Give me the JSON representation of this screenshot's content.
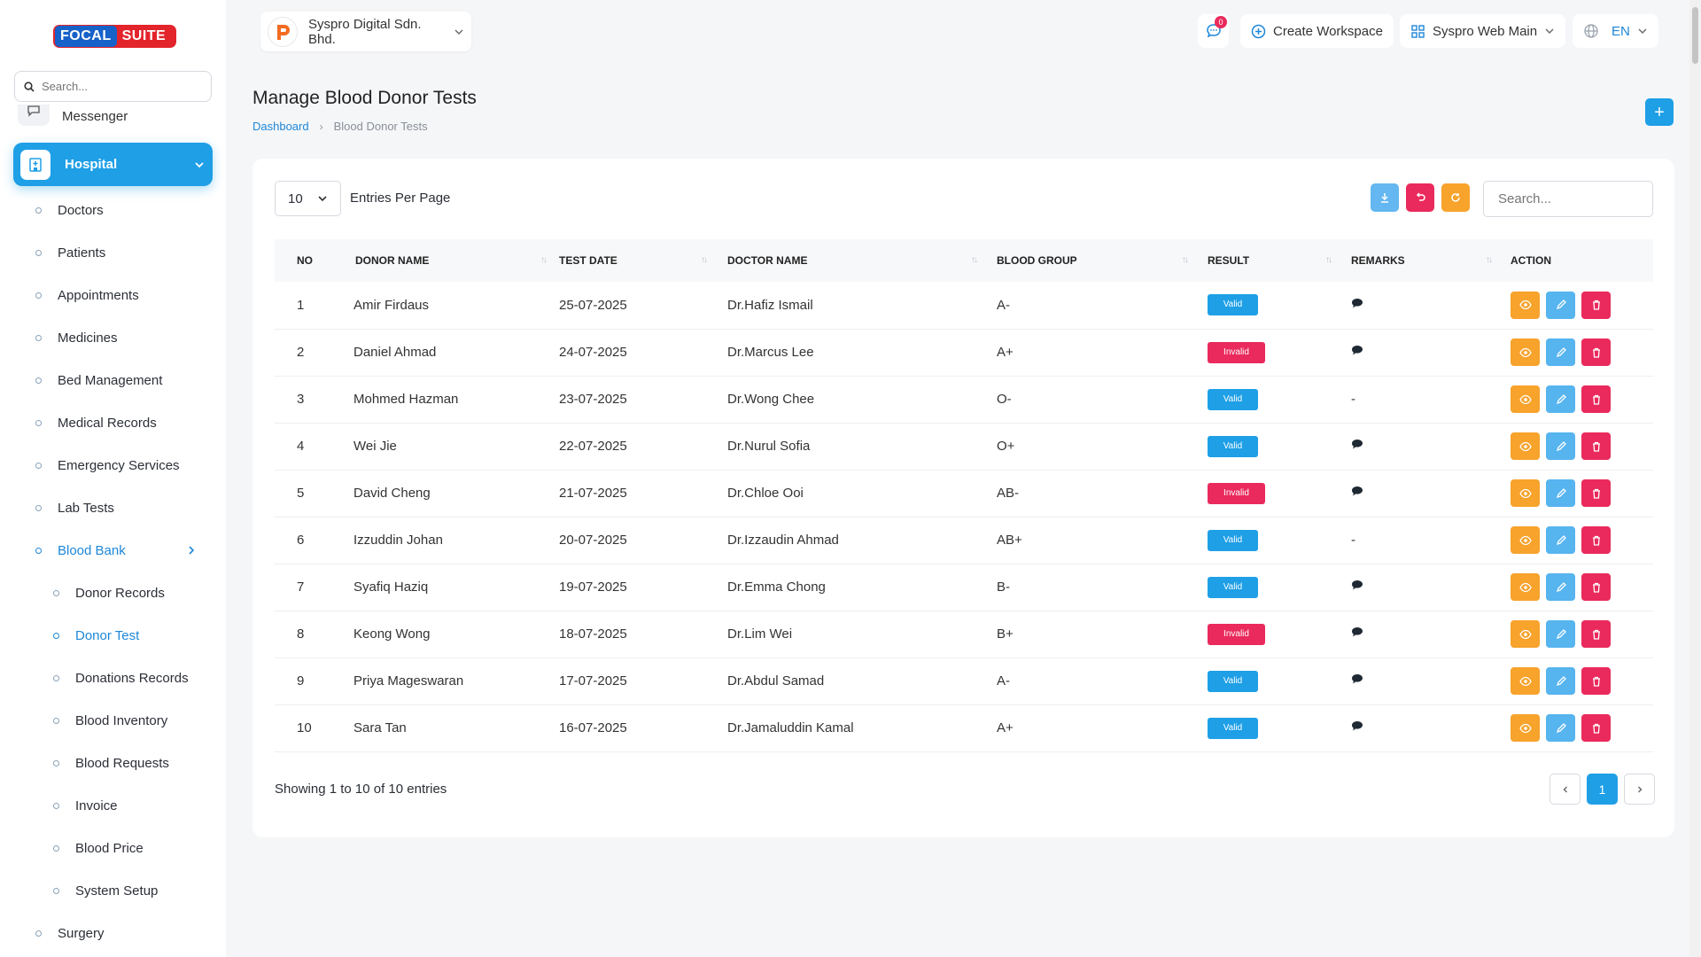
{
  "brand": {
    "part1": "FOCAL",
    "part2": "SUITE"
  },
  "sidebar": {
    "search_placeholder": "Search...",
    "messenger": "Messenger",
    "hospital": "Hospital",
    "items": [
      {
        "label": "Doctors"
      },
      {
        "label": "Patients"
      },
      {
        "label": "Appointments"
      },
      {
        "label": "Medicines"
      },
      {
        "label": "Bed Management"
      },
      {
        "label": "Medical Records"
      },
      {
        "label": "Emergency Services"
      },
      {
        "label": "Lab Tests"
      },
      {
        "label": "Blood Bank"
      },
      {
        "label": "Donor Records"
      },
      {
        "label": "Donor Test"
      },
      {
        "label": "Donations Records"
      },
      {
        "label": "Blood Inventory"
      },
      {
        "label": "Blood Requests"
      },
      {
        "label": "Invoice"
      },
      {
        "label": "Blood Price"
      },
      {
        "label": "System Setup"
      },
      {
        "label": "Surgery"
      }
    ]
  },
  "topbar": {
    "company": "Syspro Digital Sdn. Bhd.",
    "notification_count": "0",
    "create_workspace": "Create Workspace",
    "workspace": "Syspro Web Main",
    "language": "EN"
  },
  "page": {
    "title": "Manage Blood Donor Tests",
    "breadcrumb": [
      "Dashboard",
      "Blood Donor Tests"
    ],
    "add_label": "+"
  },
  "table_controls": {
    "per_page": "10",
    "per_page_label": "Entries Per Page",
    "search_placeholder": "Search..."
  },
  "table": {
    "headers": [
      "NO",
      "DONOR NAME",
      "TEST DATE",
      "DOCTOR NAME",
      "BLOOD GROUP",
      "RESULT",
      "REMARKS",
      "ACTION"
    ],
    "rows": [
      {
        "no": "1",
        "donor": "Amir Firdaus",
        "date": "25-07-2025",
        "doctor": "Dr.Hafiz Ismail",
        "group": "A-",
        "result": "Valid",
        "remarks": true
      },
      {
        "no": "2",
        "donor": "Daniel Ahmad",
        "date": "24-07-2025",
        "doctor": "Dr.Marcus Lee",
        "group": "A+",
        "result": "Invalid",
        "remarks": true
      },
      {
        "no": "3",
        "donor": "Mohmed Hazman",
        "date": "23-07-2025",
        "doctor": "Dr.Wong Chee",
        "group": "O-",
        "result": "Valid",
        "remarks": false
      },
      {
        "no": "4",
        "donor": "Wei Jie",
        "date": "22-07-2025",
        "doctor": "Dr.Nurul Sofia",
        "group": "O+",
        "result": "Valid",
        "remarks": true
      },
      {
        "no": "5",
        "donor": "David Cheng",
        "date": "21-07-2025",
        "doctor": "Dr.Chloe Ooi",
        "group": "AB-",
        "result": "Invalid",
        "remarks": true
      },
      {
        "no": "6",
        "donor": "Izzuddin Johan",
        "date": "20-07-2025",
        "doctor": "Dr.Izzaudin Ahmad",
        "group": "AB+",
        "result": "Valid",
        "remarks": false
      },
      {
        "no": "7",
        "donor": "Syafiq Haziq",
        "date": "19-07-2025",
        "doctor": "Dr.Emma Chong",
        "group": "B-",
        "result": "Valid",
        "remarks": true
      },
      {
        "no": "8",
        "donor": "Keong Wong",
        "date": "18-07-2025",
        "doctor": "Dr.Lim Wei",
        "group": "B+",
        "result": "Invalid",
        "remarks": true
      },
      {
        "no": "9",
        "donor": "Priya Mageswaran",
        "date": "17-07-2025",
        "doctor": "Dr.Abdul Samad",
        "group": "A-",
        "result": "Valid",
        "remarks": true
      },
      {
        "no": "10",
        "donor": "Sara Tan",
        "date": "16-07-2025",
        "doctor": "Dr.Jamaluddin Kamal",
        "group": "A+",
        "result": "Valid",
        "remarks": true
      }
    ],
    "no_remark_text": "-"
  },
  "footer": {
    "showing": "Showing 1 to 10 of 10 entries",
    "current_page": "1"
  },
  "colors": {
    "primary": "#1e9fe6",
    "danger": "#ea2a5c",
    "warning": "#f7a32c",
    "info": "#56b4ef"
  }
}
